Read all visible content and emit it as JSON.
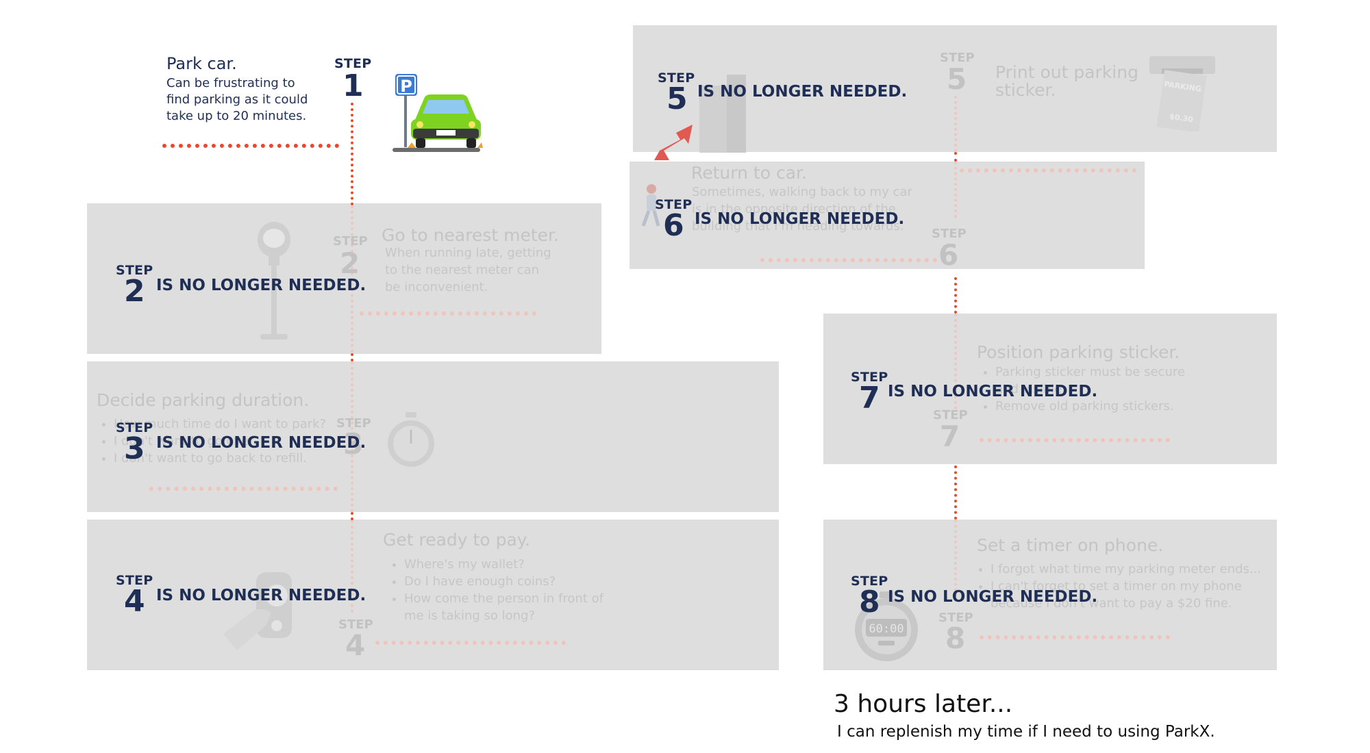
{
  "intro": {
    "title": "Park car.",
    "description": "Can be frustrating to find parking as it could take up to 20 minutes.",
    "step_label": "STEP",
    "step_number": "1",
    "parking_sign": "P"
  },
  "steps": [
    {
      "id": "step2",
      "step_label": "STEP",
      "number": "2",
      "removed_text": "IS NO LONGER NEEDED.",
      "faded_title": "Go to nearest meter.",
      "faded_desc": "When running late, getting to the nearest meter can be inconvenient.",
      "faded_step_label": "STEP",
      "faded_number": "2",
      "icon": "parking-meter-icon"
    },
    {
      "id": "step3",
      "step_label": "STEP",
      "number": "3",
      "removed_text": "IS NO LONGER NEEDED.",
      "faded_title": "Decide parking duration.",
      "faded_bullets": [
        "How much time do I want to park?",
        "I don't want to go over.",
        "I don't want to go back to refill."
      ],
      "faded_step_label": "STEP",
      "faded_number": "3",
      "icon": "stopwatch-icon"
    },
    {
      "id": "step4",
      "step_label": "STEP",
      "number": "4",
      "removed_text": "IS NO LONGER NEEDED.",
      "faded_title": "Get ready to pay.",
      "faded_bullets": [
        "Where's my wallet?",
        "Do I have enough coins?",
        "How come the person in front of me is taking so long?"
      ],
      "faded_step_label": "STEP",
      "faded_number": "4",
      "icon": "coin-payment-icon"
    },
    {
      "id": "step5",
      "step_label": "STEP",
      "number": "5",
      "removed_text": "IS NO LONGER NEEDED.",
      "faded_title": "Print out parking sticker.",
      "faded_step_label": "STEP",
      "faded_number": "5",
      "icon": "parking-sticker-icon",
      "sticker_text": "PARKING",
      "sticker_price": "$0.30"
    },
    {
      "id": "step6",
      "step_label": "STEP",
      "number": "6",
      "removed_text": "IS NO LONGER NEEDED.",
      "faded_title": "Return to car.",
      "faded_desc": "Sometimes, walking back to my car is in the opposite direction of the building that I'm heading towards.",
      "faded_step_label": "STEP",
      "faded_number": "6",
      "icon": "walking-person-icon"
    },
    {
      "id": "step7",
      "step_label": "STEP",
      "number": "7",
      "removed_text": "IS NO LONGER NEEDED.",
      "faded_title": "Position parking sticker.",
      "faded_bullets": [
        "Parking sticker must be secure and visible.",
        "Remove old parking stickers."
      ],
      "faded_step_label": "STEP",
      "faded_number": "7"
    },
    {
      "id": "step8",
      "step_label": "STEP",
      "number": "8",
      "removed_text": "IS NO LONGER NEEDED.",
      "faded_title": "Set a timer on phone.",
      "faded_bullets": [
        "I forgot what time my parking meter ends...",
        "I can't forget to set a timer on my phone because I don't want to pay a $20 fine."
      ],
      "faded_step_label": "STEP",
      "faded_number": "8",
      "icon": "timer-icon",
      "timer_display": "60:00"
    }
  ],
  "outro": {
    "title": "3 hours later...",
    "subtitle": "I can replenish my time if I need to using ParkX."
  },
  "colors": {
    "navy": "#1f2e55",
    "accent_red": "#e8492b",
    "panel_gray": "#dedede",
    "car_green": "#7ed321"
  }
}
